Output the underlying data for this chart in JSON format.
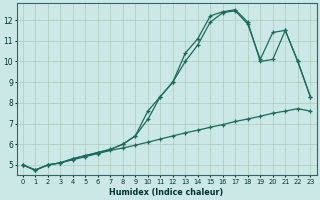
{
  "xlabel": "Humidex (Indice chaleur)",
  "bg_color": "#cce8e6",
  "grid_color": "#aaccbb",
  "line_color": "#1a6b5a",
  "xlim": [
    -0.5,
    23.5
  ],
  "ylim": [
    4.5,
    12.8
  ],
  "xticks": [
    0,
    1,
    2,
    3,
    4,
    5,
    6,
    7,
    8,
    9,
    10,
    11,
    12,
    13,
    14,
    15,
    16,
    17,
    18,
    19,
    20,
    21,
    22,
    23
  ],
  "yticks": [
    5,
    6,
    7,
    8,
    9,
    10,
    11,
    12
  ],
  "line1_x": [
    0,
    1,
    2,
    3,
    4,
    5,
    6,
    7,
    8,
    9,
    10,
    11,
    12,
    13,
    14,
    15,
    16,
    17,
    18,
    19,
    20,
    21,
    22,
    23
  ],
  "line1_y": [
    5.0,
    4.75,
    5.0,
    5.1,
    5.25,
    5.4,
    5.55,
    5.7,
    5.82,
    5.95,
    6.1,
    6.25,
    6.4,
    6.55,
    6.68,
    6.82,
    6.95,
    7.1,
    7.22,
    7.35,
    7.5,
    7.6,
    7.72,
    7.6
  ],
  "line2_x": [
    0,
    1,
    2,
    3,
    4,
    5,
    6,
    7,
    8,
    9,
    10,
    11,
    12,
    13,
    14,
    15,
    16,
    17,
    18,
    19,
    20,
    21,
    22,
    23
  ],
  "line2_y": [
    5.0,
    4.75,
    5.0,
    5.1,
    5.3,
    5.45,
    5.6,
    5.75,
    6.0,
    6.4,
    7.2,
    8.3,
    9.0,
    10.0,
    10.8,
    11.9,
    12.35,
    12.45,
    11.8,
    10.1,
    11.4,
    11.5,
    10.0,
    8.3
  ],
  "line3_x": [
    0,
    1,
    2,
    3,
    4,
    5,
    6,
    7,
    8,
    9,
    10,
    11,
    12,
    13,
    14,
    15,
    16,
    17,
    18,
    19,
    20,
    21,
    22,
    23
  ],
  "line3_y": [
    5.0,
    4.75,
    5.0,
    5.1,
    5.3,
    5.45,
    5.6,
    5.75,
    6.0,
    6.4,
    7.6,
    8.3,
    9.0,
    10.4,
    11.1,
    12.2,
    12.4,
    12.5,
    11.9,
    10.0,
    10.1,
    11.5,
    10.0,
    8.3
  ]
}
